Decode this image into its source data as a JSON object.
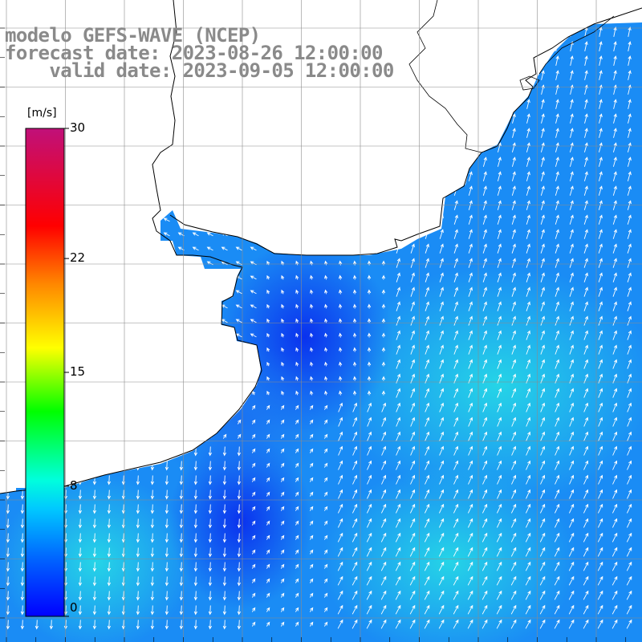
{
  "title": {
    "line1": "modelo GEFS-WAVE (NCEP)",
    "line2": "forecast date: 2023-08-26 12:00:00",
    "line3": "    valid date: 2023-09-05 12:00:00"
  },
  "legend": {
    "unit": "[m/s]",
    "min": 0,
    "max": 30,
    "ticks": [
      {
        "label": "30",
        "value": 30
      },
      {
        "label": "22",
        "value": 22
      },
      {
        "label": "15",
        "value": 15
      },
      {
        "label": "8",
        "value": 8
      },
      {
        "label": "0",
        "value": 0
      }
    ],
    "colors": [
      "#0000ff",
      "#0066ff",
      "#00ccff",
      "#00ffcc",
      "#00ff00",
      "#ffff00",
      "#ff8800",
      "#ff0000",
      "#c0107a"
    ]
  },
  "map": {
    "ocean_colors": {
      "deep": "#0a3cf0",
      "mid": "#1466f0",
      "light": "#1e9bf5",
      "cyan": "#28c8f0"
    },
    "land_color": "#ffffff",
    "coast_color": "#000000",
    "grid_color": "#8c8c8c"
  }
}
